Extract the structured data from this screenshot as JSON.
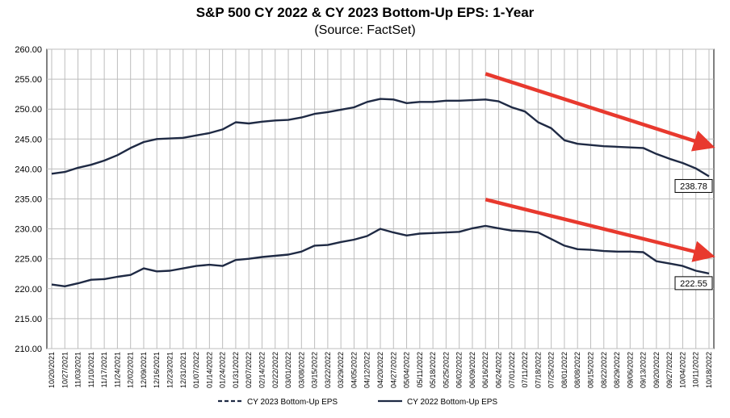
{
  "chart_data": {
    "type": "line",
    "title": "S&P 500 CY 2022 & CY 2023 Bottom-Up  EPS: 1-Year",
    "subtitle": "(Source: FactSet)",
    "xlabel": "",
    "ylabel": "",
    "ylim": [
      210,
      260
    ],
    "yticks": [
      "210.00",
      "215.00",
      "220.00",
      "225.00",
      "230.00",
      "235.00",
      "240.00",
      "245.00",
      "250.00",
      "255.00",
      "260.00"
    ],
    "grid": true,
    "legend_position": "bottom",
    "x": [
      "10/20/2021",
      "10/27/2021",
      "11/03/2021",
      "11/10/2021",
      "11/17/2021",
      "11/24/2021",
      "12/02/2021",
      "12/09/2021",
      "12/16/2021",
      "12/23/2021",
      "12/31/2021",
      "01/07/2022",
      "01/14/2022",
      "01/24/2022",
      "01/31/2022",
      "02/07/2022",
      "02/14/2022",
      "02/22/2022",
      "03/01/2022",
      "03/08/2022",
      "03/15/2022",
      "03/22/2022",
      "03/29/2022",
      "04/05/2022",
      "04/12/2022",
      "04/20/2022",
      "04/27/2022",
      "05/04/2022",
      "05/11/2022",
      "05/18/2022",
      "05/25/2022",
      "06/02/2022",
      "06/09/2022",
      "06/16/2022",
      "06/24/2022",
      "07/01/2022",
      "07/11/2022",
      "07/18/2022",
      "07/25/2022",
      "08/01/2022",
      "08/08/2022",
      "08/15/2022",
      "08/22/2022",
      "08/29/2022",
      "09/06/2022",
      "09/13/2022",
      "09/20/2022",
      "09/27/2022",
      "10/04/2022",
      "10/11/2022",
      "10/18/2022"
    ],
    "series": [
      {
        "name": "CY 2023 Bottom-Up EPS",
        "color": "#1f2a44",
        "values": [
          239.2,
          239.5,
          240.2,
          240.7,
          241.4,
          242.3,
          243.5,
          244.5,
          245.0,
          245.1,
          245.2,
          245.6,
          246.0,
          246.6,
          247.8,
          247.6,
          247.9,
          248.1,
          248.2,
          248.6,
          249.2,
          249.5,
          249.9,
          250.3,
          251.2,
          251.7,
          251.6,
          251.0,
          251.2,
          251.2,
          251.4,
          251.4,
          251.5,
          251.6,
          251.3,
          250.3,
          249.6,
          247.8,
          246.8,
          244.8,
          244.2,
          244.0,
          243.8,
          243.7,
          243.6,
          243.5,
          242.5,
          241.7,
          241.0,
          240.1,
          238.78
        ],
        "end_label": "238.78"
      },
      {
        "name": "CY 2022 Bottom-Up EPS",
        "color": "#1f2a44",
        "values": [
          220.7,
          220.4,
          220.9,
          221.5,
          221.6,
          222.0,
          222.3,
          223.4,
          222.9,
          223.0,
          223.4,
          223.8,
          224.0,
          223.8,
          224.8,
          225.0,
          225.3,
          225.5,
          225.7,
          226.2,
          227.2,
          227.3,
          227.8,
          228.2,
          228.8,
          230.0,
          229.4,
          228.9,
          229.2,
          229.3,
          229.4,
          229.5,
          230.1,
          230.5,
          230.1,
          229.7,
          229.6,
          229.4,
          228.3,
          227.2,
          226.6,
          226.5,
          226.3,
          226.2,
          226.2,
          226.1,
          224.6,
          224.2,
          223.8,
          223.0,
          222.55
        ],
        "end_label": "222.55"
      }
    ],
    "annotations": [
      {
        "type": "arrow",
        "color": "#e8392e",
        "from_x": "06/16/2022",
        "from_y": 255.9,
        "to_x": "10/18/2022",
        "to_y": 243.9
      },
      {
        "type": "arrow",
        "color": "#e8392e",
        "from_x": "06/16/2022",
        "from_y": 234.9,
        "to_x": "10/18/2022",
        "to_y": 225.6
      }
    ]
  },
  "legend": [
    {
      "label": "CY 2023 Bottom-Up EPS",
      "style": "dashed"
    },
    {
      "label": "CY 2022 Bottom-Up EPS",
      "style": "solid"
    }
  ]
}
